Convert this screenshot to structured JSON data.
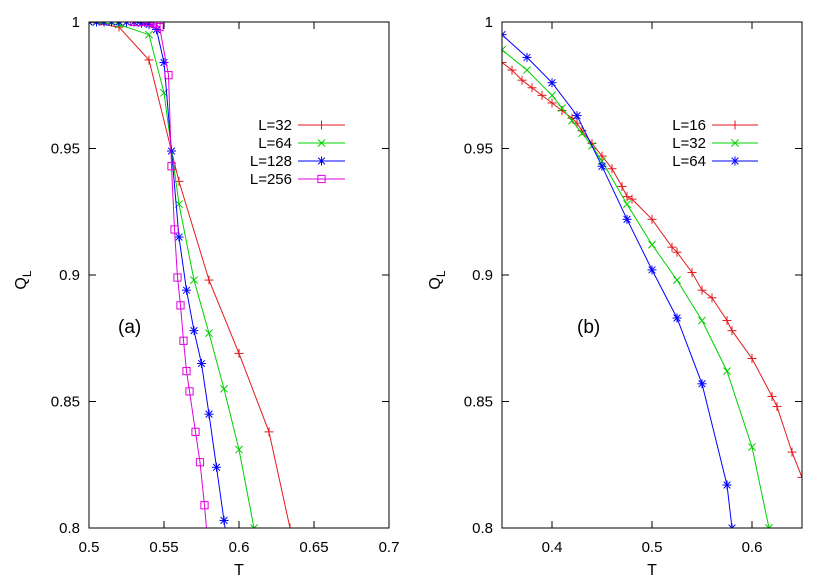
{
  "chart_data": [
    {
      "type": "line",
      "panel_label": "(a)",
      "xlabel": "T",
      "ylabel": "Q",
      "ylabel_sub": "L",
      "xlim": [
        0.5,
        0.7
      ],
      "ylim": [
        0.8,
        1.0
      ],
      "xticks": [
        0.5,
        0.55,
        0.6,
        0.65,
        0.7
      ],
      "xtick_labels": [
        "0.5",
        "0.55",
        "0.6",
        "0.65",
        "0.7"
      ],
      "yticks": [
        0.8,
        0.85,
        0.9,
        0.95,
        1.0
      ],
      "ytick_labels": [
        "0.8",
        "0.85",
        "0.9",
        "0.95",
        "1"
      ],
      "legend_position": "top-right",
      "series": [
        {
          "name": "L=32",
          "color": "#e31a1c",
          "marker": "plus",
          "points": [
            [
              0.5,
              1.0
            ],
            [
              0.52,
              0.998
            ],
            [
              0.54,
              0.985
            ],
            [
              0.56,
              0.937
            ],
            [
              0.58,
              0.898
            ],
            [
              0.6,
              0.869
            ],
            [
              0.62,
              0.838
            ],
            [
              0.634,
              0.8
            ]
          ]
        },
        {
          "name": "L=64",
          "color": "#00d000",
          "marker": "cross",
          "points": [
            [
              0.5,
              1.0
            ],
            [
              0.52,
              0.999
            ],
            [
              0.54,
              0.995
            ],
            [
              0.55,
              0.972
            ],
            [
              0.56,
              0.928
            ],
            [
              0.57,
              0.898
            ],
            [
              0.58,
              0.877
            ],
            [
              0.59,
              0.855
            ],
            [
              0.6,
              0.831
            ],
            [
              0.61,
              0.8
            ]
          ]
        },
        {
          "name": "L=128",
          "color": "#0000ff",
          "marker": "star",
          "points": [
            [
              0.5,
              1.0
            ],
            [
              0.505,
              1.0
            ],
            [
              0.51,
              1.0
            ],
            [
              0.515,
              1.0
            ],
            [
              0.52,
              1.0
            ],
            [
              0.525,
              1.0
            ],
            [
              0.53,
              1.0
            ],
            [
              0.535,
              0.9995
            ],
            [
              0.54,
              0.999
            ],
            [
              0.545,
              0.997
            ],
            [
              0.55,
              0.984
            ],
            [
              0.555,
              0.949
            ],
            [
              0.56,
              0.915
            ],
            [
              0.565,
              0.894
            ],
            [
              0.57,
              0.878
            ],
            [
              0.575,
              0.865
            ],
            [
              0.58,
              0.845
            ],
            [
              0.585,
              0.824
            ],
            [
              0.59,
              0.803
            ],
            [
              0.592,
              0.795
            ]
          ]
        },
        {
          "name": "L=256",
          "color": "#e000e0",
          "marker": "square",
          "points": [
            [
              0.53,
              1.0
            ],
            [
              0.533,
              1.0
            ],
            [
              0.536,
              1.0
            ],
            [
              0.539,
              1.0
            ],
            [
              0.541,
              1.0
            ],
            [
              0.543,
              0.9995
            ],
            [
              0.545,
              0.999
            ],
            [
              0.547,
              0.998
            ],
            [
              0.553,
              0.979
            ],
            [
              0.555,
              0.943
            ],
            [
              0.557,
              0.918
            ],
            [
              0.559,
              0.899
            ],
            [
              0.561,
              0.888
            ],
            [
              0.563,
              0.874
            ],
            [
              0.565,
              0.862
            ],
            [
              0.567,
              0.854
            ],
            [
              0.571,
              0.838
            ],
            [
              0.574,
              0.826
            ],
            [
              0.577,
              0.809
            ],
            [
              0.579,
              0.795
            ]
          ]
        }
      ]
    },
    {
      "type": "line",
      "panel_label": "(b)",
      "xlabel": "T",
      "ylabel": "Q",
      "ylabel_sub": "L",
      "xlim": [
        0.35,
        0.65
      ],
      "ylim": [
        0.8,
        1.0
      ],
      "xticks": [
        0.4,
        0.5,
        0.6
      ],
      "xtick_labels": [
        "0.4",
        "0.5",
        "0.6"
      ],
      "yticks": [
        0.8,
        0.85,
        0.9,
        0.95,
        1.0
      ],
      "ytick_labels": [
        "0.8",
        "0.85",
        "0.9",
        "0.95",
        "1"
      ],
      "legend_position": "top-right",
      "series": [
        {
          "name": "L=16",
          "color": "#e31a1c",
          "marker": "plus",
          "points": [
            [
              0.35,
              0.984
            ],
            [
              0.36,
              0.981
            ],
            [
              0.37,
              0.977
            ],
            [
              0.38,
              0.974
            ],
            [
              0.39,
              0.971
            ],
            [
              0.4,
              0.968
            ],
            [
              0.41,
              0.965
            ],
            [
              0.42,
              0.962
            ],
            [
              0.425,
              0.96
            ],
            [
              0.43,
              0.957
            ],
            [
              0.44,
              0.952
            ],
            [
              0.45,
              0.947
            ],
            [
              0.46,
              0.942
            ],
            [
              0.47,
              0.935
            ],
            [
              0.475,
              0.931
            ],
            [
              0.48,
              0.93
            ],
            [
              0.5,
              0.922
            ],
            [
              0.52,
              0.911
            ],
            [
              0.525,
              0.909
            ],
            [
              0.54,
              0.901
            ],
            [
              0.55,
              0.894
            ],
            [
              0.56,
              0.891
            ],
            [
              0.575,
              0.882
            ],
            [
              0.58,
              0.878
            ],
            [
              0.6,
              0.867
            ],
            [
              0.62,
              0.852
            ],
            [
              0.625,
              0.848
            ],
            [
              0.64,
              0.83
            ],
            [
              0.65,
              0.82
            ]
          ]
        },
        {
          "name": "L=32",
          "color": "#00d000",
          "marker": "cross",
          "points": [
            [
              0.35,
              0.989
            ],
            [
              0.375,
              0.981
            ],
            [
              0.4,
              0.971
            ],
            [
              0.41,
              0.966
            ],
            [
              0.42,
              0.961
            ],
            [
              0.43,
              0.956
            ],
            [
              0.44,
              0.951
            ],
            [
              0.45,
              0.945
            ],
            [
              0.475,
              0.928
            ],
            [
              0.5,
              0.912
            ],
            [
              0.525,
              0.898
            ],
            [
              0.55,
              0.882
            ],
            [
              0.575,
              0.862
            ],
            [
              0.6,
              0.832
            ],
            [
              0.617,
              0.8
            ]
          ]
        },
        {
          "name": "L=64",
          "color": "#0000ff",
          "marker": "star",
          "points": [
            [
              0.35,
              0.995
            ],
            [
              0.375,
              0.986
            ],
            [
              0.4,
              0.976
            ],
            [
              0.425,
              0.963
            ],
            [
              0.45,
              0.943
            ],
            [
              0.475,
              0.922
            ],
            [
              0.5,
              0.902
            ],
            [
              0.525,
              0.883
            ],
            [
              0.55,
              0.857
            ],
            [
              0.575,
              0.817
            ],
            [
              0.58,
              0.8
            ]
          ]
        }
      ]
    }
  ]
}
